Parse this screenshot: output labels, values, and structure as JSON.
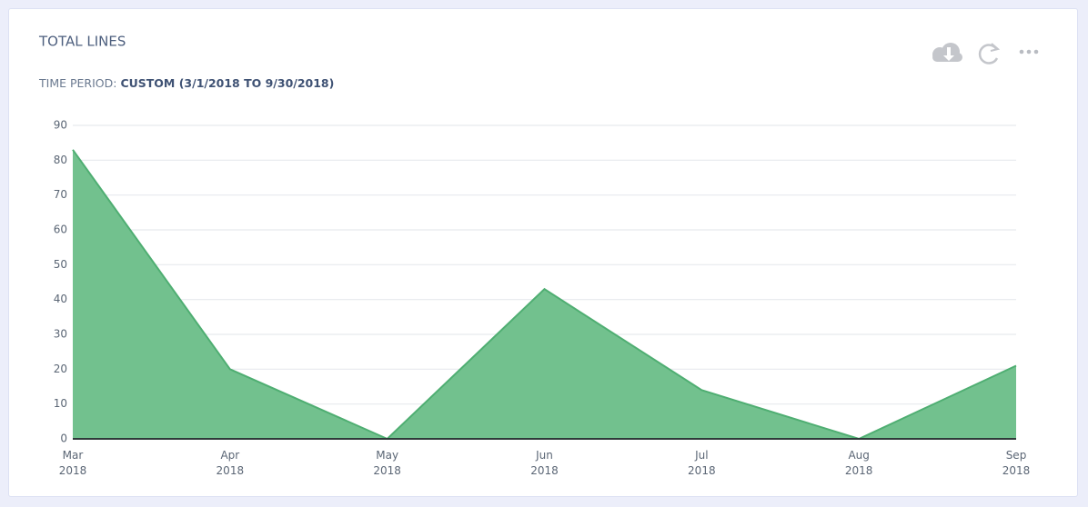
{
  "chart_data": {
    "type": "area",
    "title": "TOTAL LINES",
    "subtitle_label": "TIME PERIOD:",
    "subtitle": "CUSTOM (3/1/2018 TO 9/30/2018)",
    "x": [
      "Mar 2018",
      "Apr 2018",
      "May 2018",
      "Jun 2018",
      "Jul 2018",
      "Aug 2018",
      "Sep 2018"
    ],
    "values": [
      83,
      20,
      0,
      43,
      14,
      0,
      21
    ],
    "color": "#72c18e",
    "ylim": [
      0,
      90
    ],
    "yticks": [
      0,
      10,
      20,
      30,
      40,
      50,
      60,
      70,
      80,
      90
    ],
    "grid": true
  }
}
